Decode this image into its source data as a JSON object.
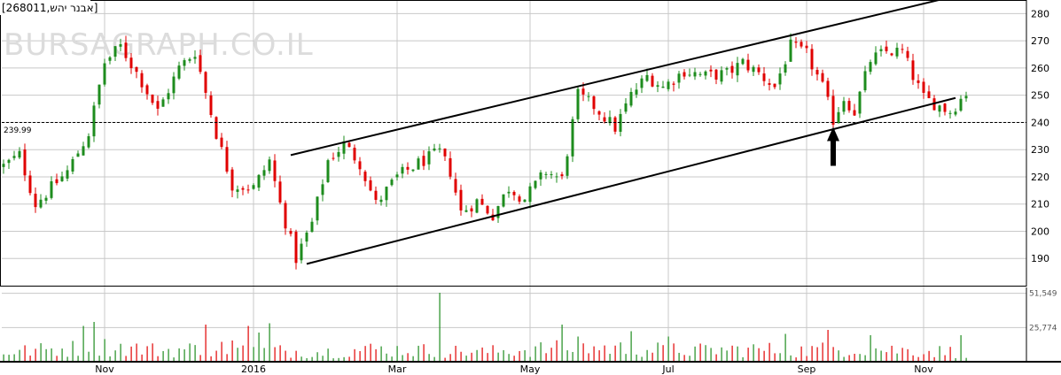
{
  "header": {
    "title": "[268011,אבנר יהש]"
  },
  "watermark": "BURSAGRAPH.CO.IL",
  "price_label": "239.99",
  "chart_data": {
    "type": "candlestick",
    "price_axis": {
      "ticks": [
        190,
        200,
        210,
        220,
        230,
        240,
        250,
        260,
        270,
        280
      ],
      "range": [
        180,
        285
      ]
    },
    "volume_axis": {
      "ticks": [
        "51,549",
        "25,774"
      ],
      "values": [
        51549,
        25774
      ],
      "range": [
        0,
        56000
      ]
    },
    "x_labels": [
      "Nov",
      "2016",
      "Mar",
      "May",
      "Jul",
      "Sep",
      "Nov"
    ],
    "reference_line": 239.99,
    "colors": {
      "up": "#1e8c1e",
      "down": "#e00000",
      "line": "#000000",
      "grid": "#c8c8c8"
    },
    "trend_channel": {
      "upper": [
        [
          54,
          228
        ],
        [
          178,
          286
        ]
      ],
      "lower": [
        [
          57,
          188
        ],
        [
          179,
          249
        ]
      ]
    },
    "annotation": {
      "type": "arrow-up",
      "bar": 156,
      "price": 239
    },
    "price_anchors": [
      [
        0,
        224
      ],
      [
        3,
        228
      ],
      [
        6,
        210
      ],
      [
        8,
        214
      ],
      [
        12,
        222
      ],
      [
        16,
        236
      ],
      [
        19,
        262
      ],
      [
        22,
        268
      ],
      [
        26,
        255
      ],
      [
        29,
        244
      ],
      [
        33,
        260
      ],
      [
        36,
        266
      ],
      [
        40,
        236
      ],
      [
        43,
        217
      ],
      [
        47,
        216
      ],
      [
        50,
        226
      ],
      [
        52,
        210
      ],
      [
        55,
        190
      ],
      [
        58,
        203
      ],
      [
        61,
        226
      ],
      [
        64,
        232
      ],
      [
        67,
        225
      ],
      [
        70,
        210
      ],
      [
        74,
        220
      ],
      [
        78,
        225
      ],
      [
        82,
        229
      ],
      [
        84,
        222
      ],
      [
        86,
        207
      ],
      [
        89,
        211
      ],
      [
        92,
        206
      ],
      [
        95,
        216
      ],
      [
        98,
        212
      ],
      [
        102,
        222
      ],
      [
        105,
        219
      ],
      [
        108,
        250
      ],
      [
        111,
        246
      ],
      [
        115,
        238
      ],
      [
        118,
        250
      ],
      [
        121,
        257
      ],
      [
        124,
        253
      ],
      [
        128,
        259
      ],
      [
        132,
        257
      ],
      [
        136,
        258
      ],
      [
        139,
        262
      ],
      [
        142,
        258
      ],
      [
        145,
        253
      ],
      [
        148,
        268
      ],
      [
        151,
        265
      ],
      [
        154,
        253
      ],
      [
        156,
        241
      ],
      [
        158,
        249
      ],
      [
        160,
        244
      ],
      [
        163,
        263
      ],
      [
        166,
        266
      ],
      [
        169,
        266
      ],
      [
        171,
        257
      ],
      [
        173,
        249
      ],
      [
        176,
        246
      ],
      [
        178,
        244
      ],
      [
        181,
        251
      ]
    ],
    "volume_anchors": [
      [
        0,
        7000
      ],
      [
        10,
        9000
      ],
      [
        20,
        11000
      ],
      [
        30,
        8000
      ],
      [
        40,
        10000
      ],
      [
        50,
        8000
      ],
      [
        60,
        7000
      ],
      [
        70,
        9000
      ],
      [
        80,
        8000
      ],
      [
        90,
        7000
      ],
      [
        100,
        9000
      ],
      [
        110,
        10000
      ],
      [
        120,
        9000
      ],
      [
        130,
        8000
      ],
      [
        140,
        9000
      ],
      [
        150,
        8000
      ],
      [
        160,
        10000
      ],
      [
        170,
        8000
      ],
      [
        181,
        7000
      ]
    ],
    "volume_spikes": [
      [
        15,
        27000
      ],
      [
        17,
        30000
      ],
      [
        38,
        28000
      ],
      [
        43,
        16000
      ],
      [
        46,
        27000
      ],
      [
        48,
        22000
      ],
      [
        50,
        29000
      ],
      [
        82,
        52000
      ],
      [
        105,
        28000
      ],
      [
        108,
        19000
      ],
      [
        118,
        23000
      ],
      [
        125,
        19000
      ],
      [
        147,
        21000
      ],
      [
        155,
        24000
      ],
      [
        163,
        20000
      ],
      [
        180,
        20000
      ]
    ]
  }
}
